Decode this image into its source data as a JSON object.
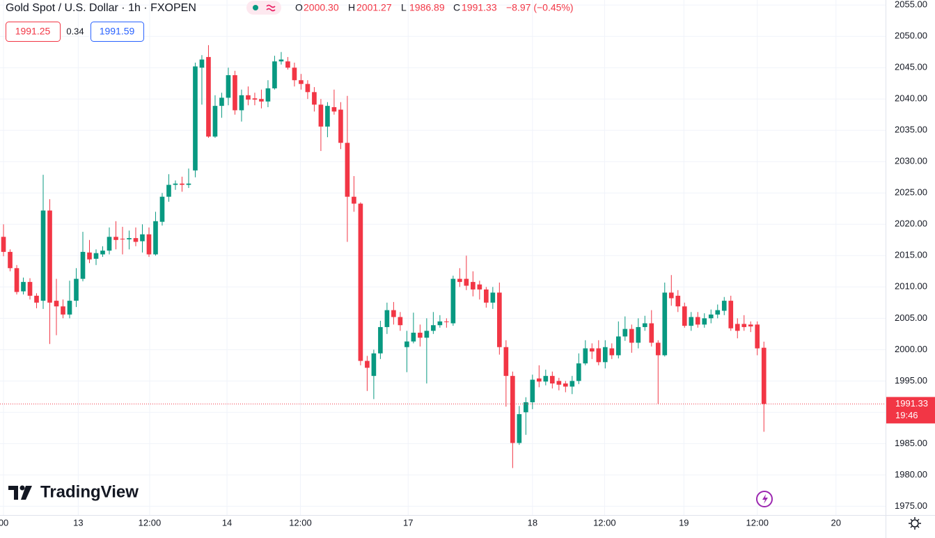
{
  "chart_data": {
    "type": "candlestick",
    "title": "Gold Spot / U.S. Dollar · 1h · FXOPEN",
    "legend_ohlc": [
      {
        "key": "O",
        "value": "2000.30"
      },
      {
        "key": "H",
        "value": "2001.27"
      },
      {
        "key": "L",
        "value": "1986.89"
      },
      {
        "key": "C",
        "value": "1991.33"
      }
    ],
    "change": "−8.97 (−0.45%)",
    "bid": "1991.25",
    "spread": "0.34",
    "ask": "1991.59",
    "last_price": {
      "value": 1991.33,
      "label": "1991.33"
    },
    "countdown": "19:46",
    "brand": "TradingView",
    "up_color": "#089981",
    "down_color": "#f23645",
    "grid": true,
    "xlim": [
      -0.53,
      133.4
    ],
    "xticks": [
      {
        "value": 0,
        "label": "00"
      },
      {
        "value": 11.3,
        "label": "13"
      },
      {
        "value": 22.1,
        "label": "12:00"
      },
      {
        "value": 33.8,
        "label": "14"
      },
      {
        "value": 44.9,
        "label": "12:00"
      },
      {
        "value": 61.2,
        "label": "17"
      },
      {
        "value": 80.0,
        "label": "18"
      },
      {
        "value": 90.9,
        "label": "12:00"
      },
      {
        "value": 102.9,
        "label": "19"
      },
      {
        "value": 114.0,
        "label": "12:00"
      },
      {
        "value": 125.9,
        "label": "20"
      }
    ],
    "ylim": [
      1973.6,
      2055.8
    ],
    "yticks": [
      {
        "value": 1975,
        "label": "1975.00"
      },
      {
        "value": 1980,
        "label": "1980.00"
      },
      {
        "value": 1985,
        "label": "1985.00"
      },
      {
        "value": 1990,
        "label": "1990.00"
      },
      {
        "value": 1995,
        "label": "1995.00"
      },
      {
        "value": 2000,
        "label": "2000.00"
      },
      {
        "value": 2005,
        "label": "2005.00"
      },
      {
        "value": 2010,
        "label": "2010.00"
      },
      {
        "value": 2015,
        "label": "2015.00"
      },
      {
        "value": 2020,
        "label": "2020.00"
      },
      {
        "value": 2025,
        "label": "2025.00"
      },
      {
        "value": 2030,
        "label": "2030.00"
      },
      {
        "value": 2035,
        "label": "2035.00"
      },
      {
        "value": 2040,
        "label": "2040.00"
      },
      {
        "value": 2045,
        "label": "2045.00"
      },
      {
        "value": 2050,
        "label": "2050.00"
      },
      {
        "value": 2055,
        "label": "2055.00"
      }
    ],
    "open": [
      2018.0,
      2015.6,
      2013.0,
      2009.3,
      2010.8,
      2008.6,
      2007.8,
      2022.2,
      2007.8,
      2006.9,
      2005.6,
      2007.8,
      2011.3,
      2015.5,
      2014.5,
      2015.2,
      2015.8,
      2018.0,
      2017.7,
      2017.6,
      2017.8,
      2017.3,
      2018.4,
      2015.2,
      2020.4,
      2024.4,
      2026.3,
      2026.5,
      2026.3,
      2028.6,
      2045.0,
      2046.7,
      2034.0,
      2038.9,
      2040.2,
      2043.8,
      2038.2,
      2040.6,
      2040.1,
      2040.0,
      2039.6,
      2041.7,
      2046.0,
      2046.0,
      2045.0,
      2043.0,
      2042.4,
      2041.1,
      2039.1,
      2035.6,
      2038.7,
      2038.3,
      2033.0,
      2024.4,
      2023.3,
      1998.2,
      1995.8,
      1999.4,
      2003.6,
      2006.3,
      2005.2,
      2000.4,
      2001.3,
      2002.7,
      2001.9,
      2003.0,
      2003.9,
      2004.5,
      2004.2,
      2011.3,
      2011.3,
      2010.8,
      2010.4,
      2009.6,
      2007.5,
      2009.1,
      2000.4,
      1995.8,
      1985.1,
      1990.0,
      1991.6,
      1995.4,
      1994.9,
      1995.8,
      1995.0,
      1994.6,
      1994.1,
      1995.0,
      1997.8,
      2000.2,
      2000.2,
      1998.0,
      2000.2,
      1999.1,
      2002.1,
      2003.3,
      2001.1,
      2003.6,
      2004.2,
      2001.1,
      1999.1,
      2009.1,
      2008.6,
      2006.9,
      2003.8,
      2005.2,
      2004.0,
      2005.0,
      2005.6,
      2006.2,
      2007.8,
      2004.1,
      2004.1,
      2004.0,
      2004.0,
      2000.3
    ],
    "high": [
      2020.0,
      2016.0,
      2013.5,
      2011.5,
      2011.4,
      2009.0,
      2027.9,
      2024.0,
      2011.3,
      2008.0,
      2011.0,
      2013.0,
      2018.8,
      2017.5,
      2016.0,
      2016.5,
      2019.5,
      2020.5,
      2019.6,
      2019.0,
      2019.5,
      2020.0,
      2019.5,
      2022.0,
      2025.0,
      2028.0,
      2027.0,
      2027.6,
      2028.9,
      2045.8,
      2047.0,
      2048.6,
      2040.6,
      2041.0,
      2045.0,
      2044.5,
      2041.5,
      2042.0,
      2041.0,
      2041.5,
      2043.0,
      2046.9,
      2047.5,
      2046.7,
      2045.8,
      2044.0,
      2043.0,
      2041.9,
      2040.0,
      2039.5,
      2041.5,
      2039.5,
      2040.5,
      2027.7,
      2023.5,
      1999.0,
      2000.0,
      2004.6,
      2007.5,
      2007.6,
      2006.0,
      2003.0,
      2005.9,
      2004.0,
      2005.0,
      2006.0,
      2005.5,
      2005.0,
      2011.8,
      2013.0,
      2015.0,
      2012.5,
      2011.0,
      2010.0,
      2010.0,
      2010.7,
      2001.5,
      1996.5,
      1991.0,
      1992.4,
      1996.0,
      1997.5,
      1996.8,
      1996.5,
      1995.5,
      1995.0,
      1995.8,
      1999.4,
      2001.5,
      2001.0,
      2001.5,
      2001.5,
      2001.0,
      2004.5,
      2005.3,
      2004.0,
      2005.0,
      2005.4,
      2006.3,
      2001.5,
      2010.7,
      2011.9,
      2009.5,
      2007.5,
      2006.0,
      2006.0,
      2005.8,
      2006.4,
      2007.2,
      2008.4,
      2008.6,
      2005.0,
      2005.5,
      2004.5,
      2004.5,
      2001.27
    ],
    "low": [
      2014.9,
      2012.5,
      2008.8,
      2008.8,
      2008.0,
      2006.6,
      2006.5,
      2000.9,
      2002.3,
      2005.0,
      2005.0,
      2006.8,
      2010.9,
      2013.8,
      2013.5,
      2014.8,
      2015.2,
      2016.0,
      2015.2,
      2016.0,
      2016.5,
      2015.5,
      2014.8,
      2015.0,
      2019.8,
      2023.6,
      2025.5,
      2025.2,
      2025.8,
      2027.5,
      2039.1,
      2033.8,
      2033.8,
      2037.0,
      2039.0,
      2037.5,
      2036.4,
      2039.0,
      2039.0,
      2038.5,
      2038.7,
      2041.5,
      2045.5,
      2044.7,
      2042.0,
      2041.5,
      2040.0,
      2038.0,
      2031.7,
      2033.9,
      2037.5,
      2032.0,
      2017.2,
      2022.0,
      1997.5,
      1993.4,
      1992.1,
      1998.5,
      2002.5,
      2004.0,
      2003.0,
      1996.4,
      2001.0,
      2000.5,
      1994.6,
      2002.5,
      2003.5,
      2003.5,
      2003.8,
      2010.0,
      2009.5,
      2008.5,
      2008.0,
      2006.7,
      2006.5,
      1999.2,
      1990.9,
      1981.1,
      1984.8,
      1986.4,
      1990.5,
      1994.0,
      1994.3,
      1993.8,
      1993.5,
      1993.2,
      1992.9,
      1994.5,
      1997.5,
      1998.5,
      1997.5,
      1997.0,
      1998.5,
      1998.6,
      2001.4,
      1999.5,
      2000.2,
      2003.0,
      2000.5,
      1991.3,
      1998.9,
      2007.0,
      2006.0,
      2003.5,
      2003.0,
      2003.5,
      2003.5,
      2004.2,
      2005.0,
      2005.5,
      2003.0,
      2001.8,
      2003.0,
      2002.8,
      1999.1,
      1986.89
    ],
    "close": [
      2015.6,
      2013.0,
      2009.2,
      2010.8,
      2008.6,
      2007.5,
      2022.2,
      2007.5,
      2006.9,
      2005.6,
      2007.8,
      2011.3,
      2015.6,
      2014.4,
      2015.4,
      2015.8,
      2018.0,
      2017.5,
      2017.6,
      2017.8,
      2017.2,
      2018.4,
      2015.2,
      2020.5,
      2024.4,
      2026.3,
      2026.5,
      2026.3,
      2026.5,
      2045.2,
      2046.3,
      2034.0,
      2038.9,
      2040.2,
      2043.8,
      2038.2,
      2040.6,
      2039.9,
      2039.9,
      2039.6,
      2041.7,
      2046.0,
      2046.3,
      2045.0,
      2043.0,
      2042.4,
      2041.1,
      2039.1,
      2035.6,
      2038.9,
      2038.0,
      2033.0,
      2024.4,
      2023.3,
      1998.2,
      1997.1,
      1999.4,
      2003.6,
      2006.3,
      2005.2,
      2003.9,
      2001.3,
      2002.7,
      2001.9,
      2003.0,
      2003.9,
      2004.5,
      2004.4,
      2011.3,
      2010.8,
      2010.2,
      2009.6,
      2009.6,
      2007.5,
      2009.1,
      2000.4,
      1995.8,
      1985.1,
      1989.7,
      1991.6,
      1995.2,
      1994.9,
      1995.8,
      1994.6,
      1994.4,
      1994.1,
      1995.0,
      1997.8,
      2000.2,
      1999.7,
      1998.0,
      2000.4,
      1999.1,
      2002.1,
      2003.3,
      2001.1,
      2003.6,
      2004.2,
      2001.1,
      1999.1,
      2009.1,
      2008.2,
      2006.9,
      2003.8,
      2005.2,
      2004.0,
      2005.0,
      2005.6,
      2006.3,
      2007.8,
      2003.4,
      2003.0,
      2003.6,
      2003.7,
      2000.2,
      1991.33
    ]
  }
}
